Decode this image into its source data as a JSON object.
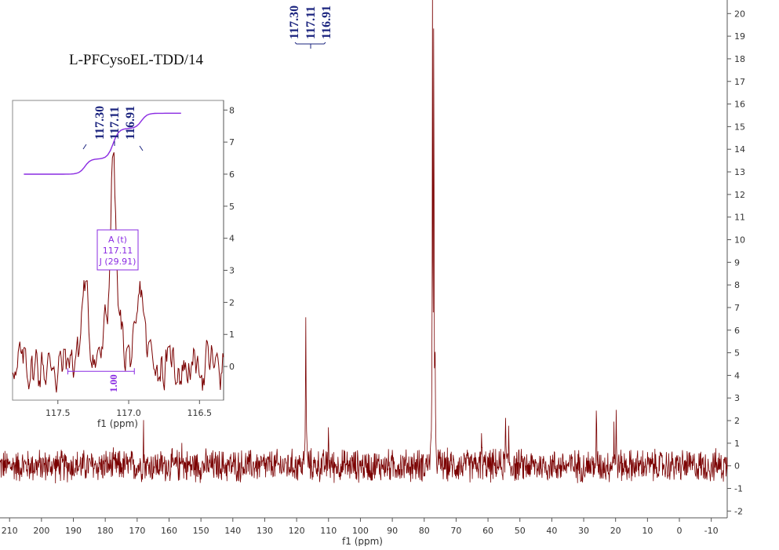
{
  "sample_label": "L-PFCysoEL-TDD/14",
  "colors": {
    "spectrum": "#7a0000",
    "peak_label": "#1a237e",
    "integral": "#8a2be2",
    "axis": "#555555"
  },
  "chart_data": [
    {
      "type": "line",
      "name": "main-spectrum",
      "xlabel": "f1 (ppm)",
      "xlim": [
        213,
        -15
      ],
      "ylim": [
        -2.3,
        20.6
      ],
      "x_ticks": [
        210,
        200,
        190,
        180,
        170,
        160,
        150,
        140,
        130,
        120,
        110,
        100,
        90,
        80,
        70,
        60,
        50,
        40,
        30,
        20,
        10,
        0,
        -10
      ],
      "x_tick_labels": [
        "210",
        "200",
        "190",
        "180",
        "170",
        "160",
        "150",
        "140",
        "130",
        "120",
        "110",
        "100",
        "90",
        "80",
        "70",
        "60",
        "50",
        "40",
        "30",
        "20",
        "10",
        "0",
        "-10"
      ],
      "y_ticks": [
        20,
        19,
        18,
        17,
        16,
        15,
        14,
        13,
        12,
        11,
        10,
        9,
        8,
        7,
        6,
        5,
        4,
        3,
        2,
        1,
        0,
        -1,
        -2
      ],
      "y_tick_labels": [
        "20",
        "19",
        "18",
        "17",
        "16",
        "15",
        "14",
        "13",
        "12",
        "11",
        "10",
        "9",
        "8",
        "7",
        "6",
        "5",
        "4",
        "3",
        "2",
        "1",
        "0",
        "-1",
        "-2"
      ],
      "y_axis_side": "right",
      "noise_amplitude": 0.85,
      "peaks": [
        {
          "x": 168.0,
          "y": 1.9
        },
        {
          "x": 156.0,
          "y": 1.5
        },
        {
          "x": 117.3,
          "y": 1.2
        },
        {
          "x": 117.11,
          "y": 6.9
        },
        {
          "x": 116.91,
          "y": 1.1
        },
        {
          "x": 110.0,
          "y": 1.8
        },
        {
          "x": 77.4,
          "y": 23.0
        },
        {
          "x": 77.0,
          "y": 23.0
        },
        {
          "x": 76.6,
          "y": 4.8
        },
        {
          "x": 62.0,
          "y": 1.7
        },
        {
          "x": 54.5,
          "y": 2.3
        },
        {
          "x": 53.5,
          "y": 1.7
        },
        {
          "x": 26.0,
          "y": 2.5
        },
        {
          "x": 20.5,
          "y": 2.0
        },
        {
          "x": 19.8,
          "y": 2.0
        }
      ],
      "peak_labels": [
        "117.30",
        "117.11",
        "116.91"
      ]
    },
    {
      "type": "line",
      "name": "inset-spectrum",
      "xlabel": "f1 (ppm)",
      "xlim": [
        117.82,
        116.33
      ],
      "ylim": [
        -1.05,
        8.3
      ],
      "x_ticks": [
        117.5,
        117.0,
        116.5
      ],
      "x_tick_labels": [
        "117.5",
        "117.0",
        "116.5"
      ],
      "y_ticks": [
        8,
        7,
        6,
        5,
        4,
        3,
        2,
        1,
        0
      ],
      "y_tick_labels": [
        "8",
        "7",
        "6",
        "5",
        "4",
        "3",
        "2",
        "1",
        "0"
      ],
      "y_axis_side": "right",
      "peaks": [
        {
          "x": 117.31,
          "y": 2.7
        },
        {
          "x": 117.11,
          "y": 7.0
        },
        {
          "x": 116.91,
          "y": 2.3
        }
      ],
      "peak_labels": [
        "117.30",
        "117.11",
        "116.91"
      ],
      "multiplet": {
        "line1": "A (t)",
        "line2": "117.11",
        "line3": "J (29.91)"
      },
      "integral": {
        "from": 117.43,
        "to": 116.96,
        "value": "1.00"
      }
    }
  ]
}
